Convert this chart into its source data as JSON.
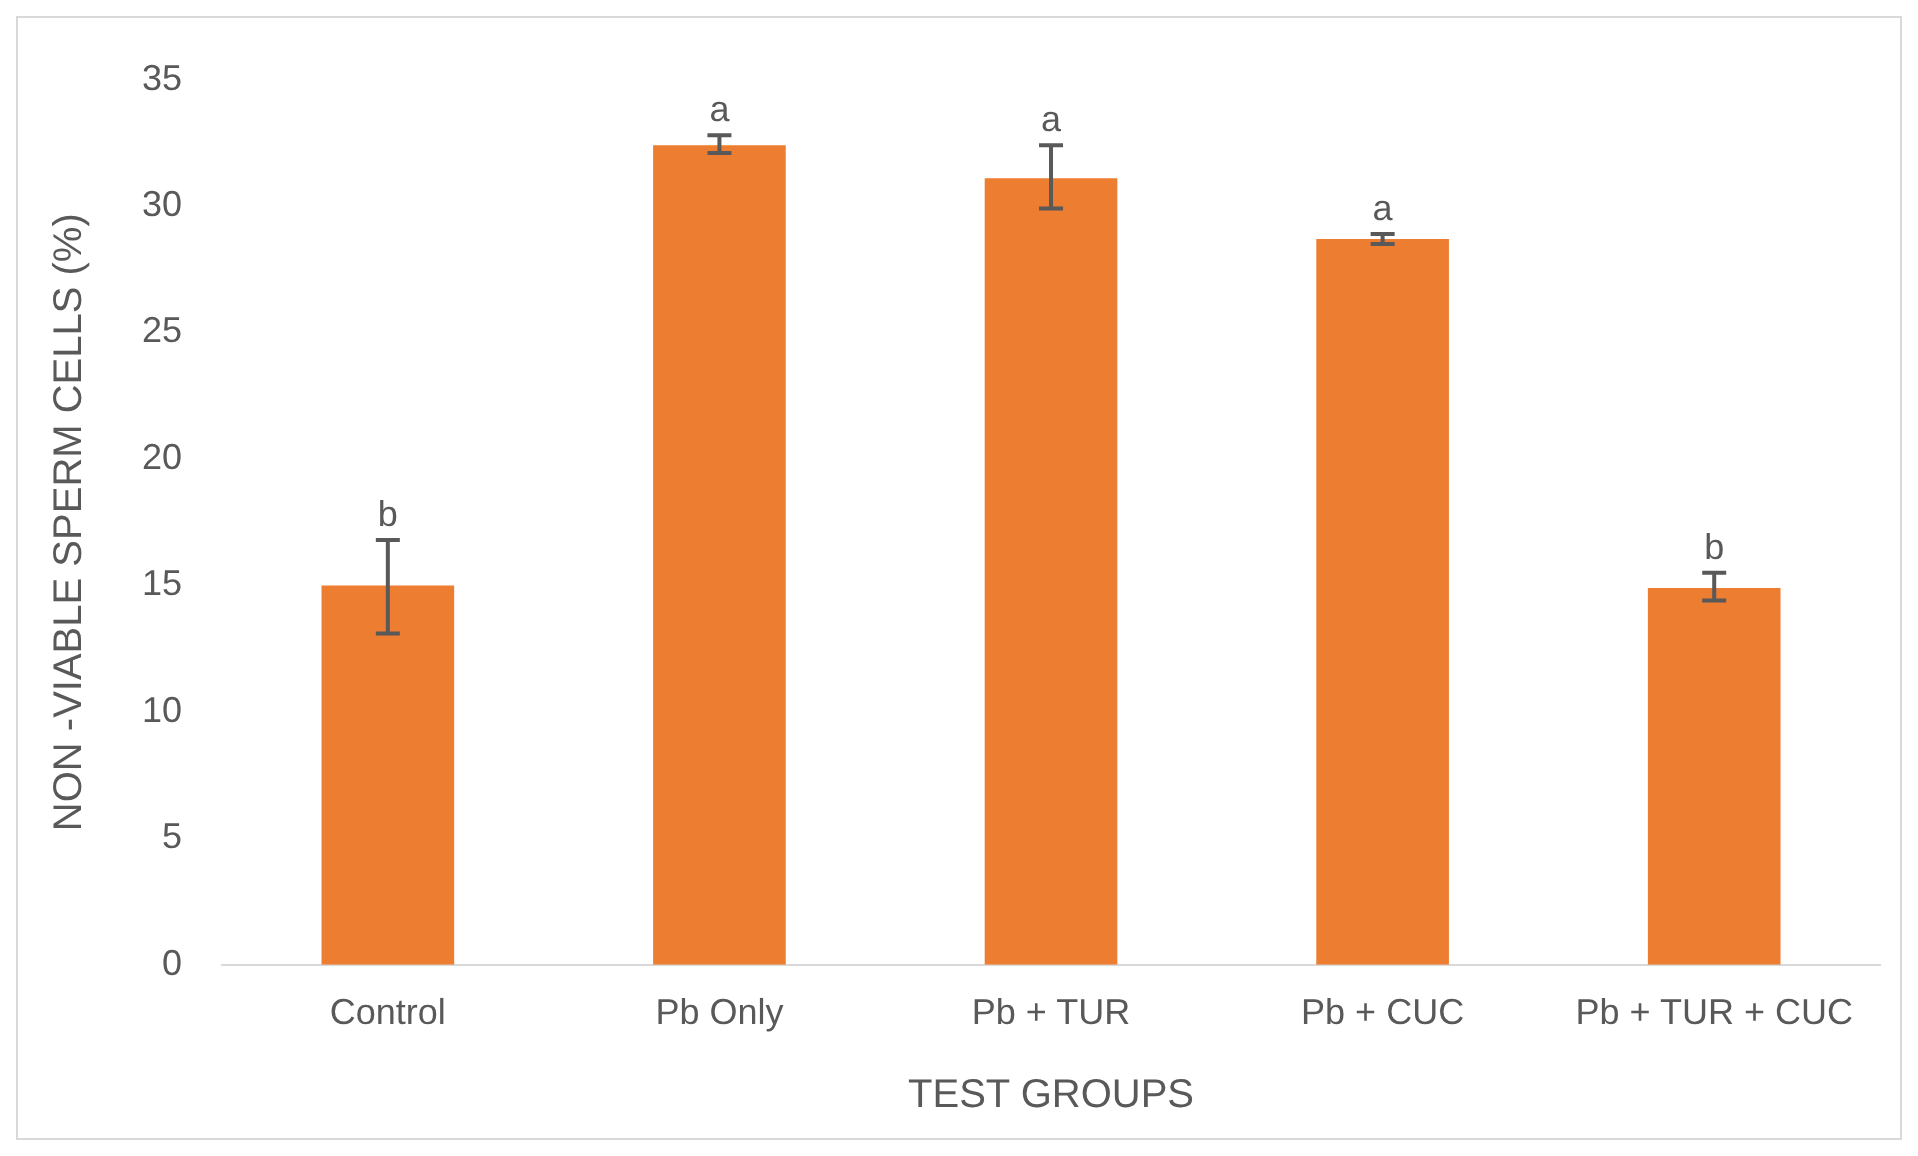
{
  "chart_data": {
    "type": "bar",
    "xlabel": "TEST GROUPS",
    "ylabel": "NON -VIABLE SPERM CELLS (%)",
    "categories": [
      "Control",
      "Pb Only",
      "Pb + TUR",
      "Pb + CUC",
      "Pb + TUR + CUC"
    ],
    "values": [
      15.0,
      32.4,
      31.1,
      28.7,
      14.9
    ],
    "errors": [
      [
        13.1,
        16.8
      ],
      [
        32.1,
        32.8
      ],
      [
        29.9,
        32.4
      ],
      [
        28.5,
        28.9
      ],
      [
        14.4,
        15.5
      ]
    ],
    "color": "#ed7d31",
    "ylim": [
      0,
      35
    ],
    "yticks": [
      0,
      5,
      10,
      15,
      20,
      25,
      30,
      35
    ],
    "grid": false,
    "legend": false,
    "annotations": [
      {
        "text": "b",
        "x": "Control",
        "y": 16.8
      },
      {
        "text": "a",
        "x": "Pb Only",
        "y": 32.8
      },
      {
        "text": "a",
        "x": "Pb + TUR",
        "y": 32.4
      },
      {
        "text": "a",
        "x": "Pb + CUC",
        "y": 28.9
      },
      {
        "text": "b",
        "x": "Pb + TUR + CUC",
        "y": 15.5
      }
    ]
  }
}
